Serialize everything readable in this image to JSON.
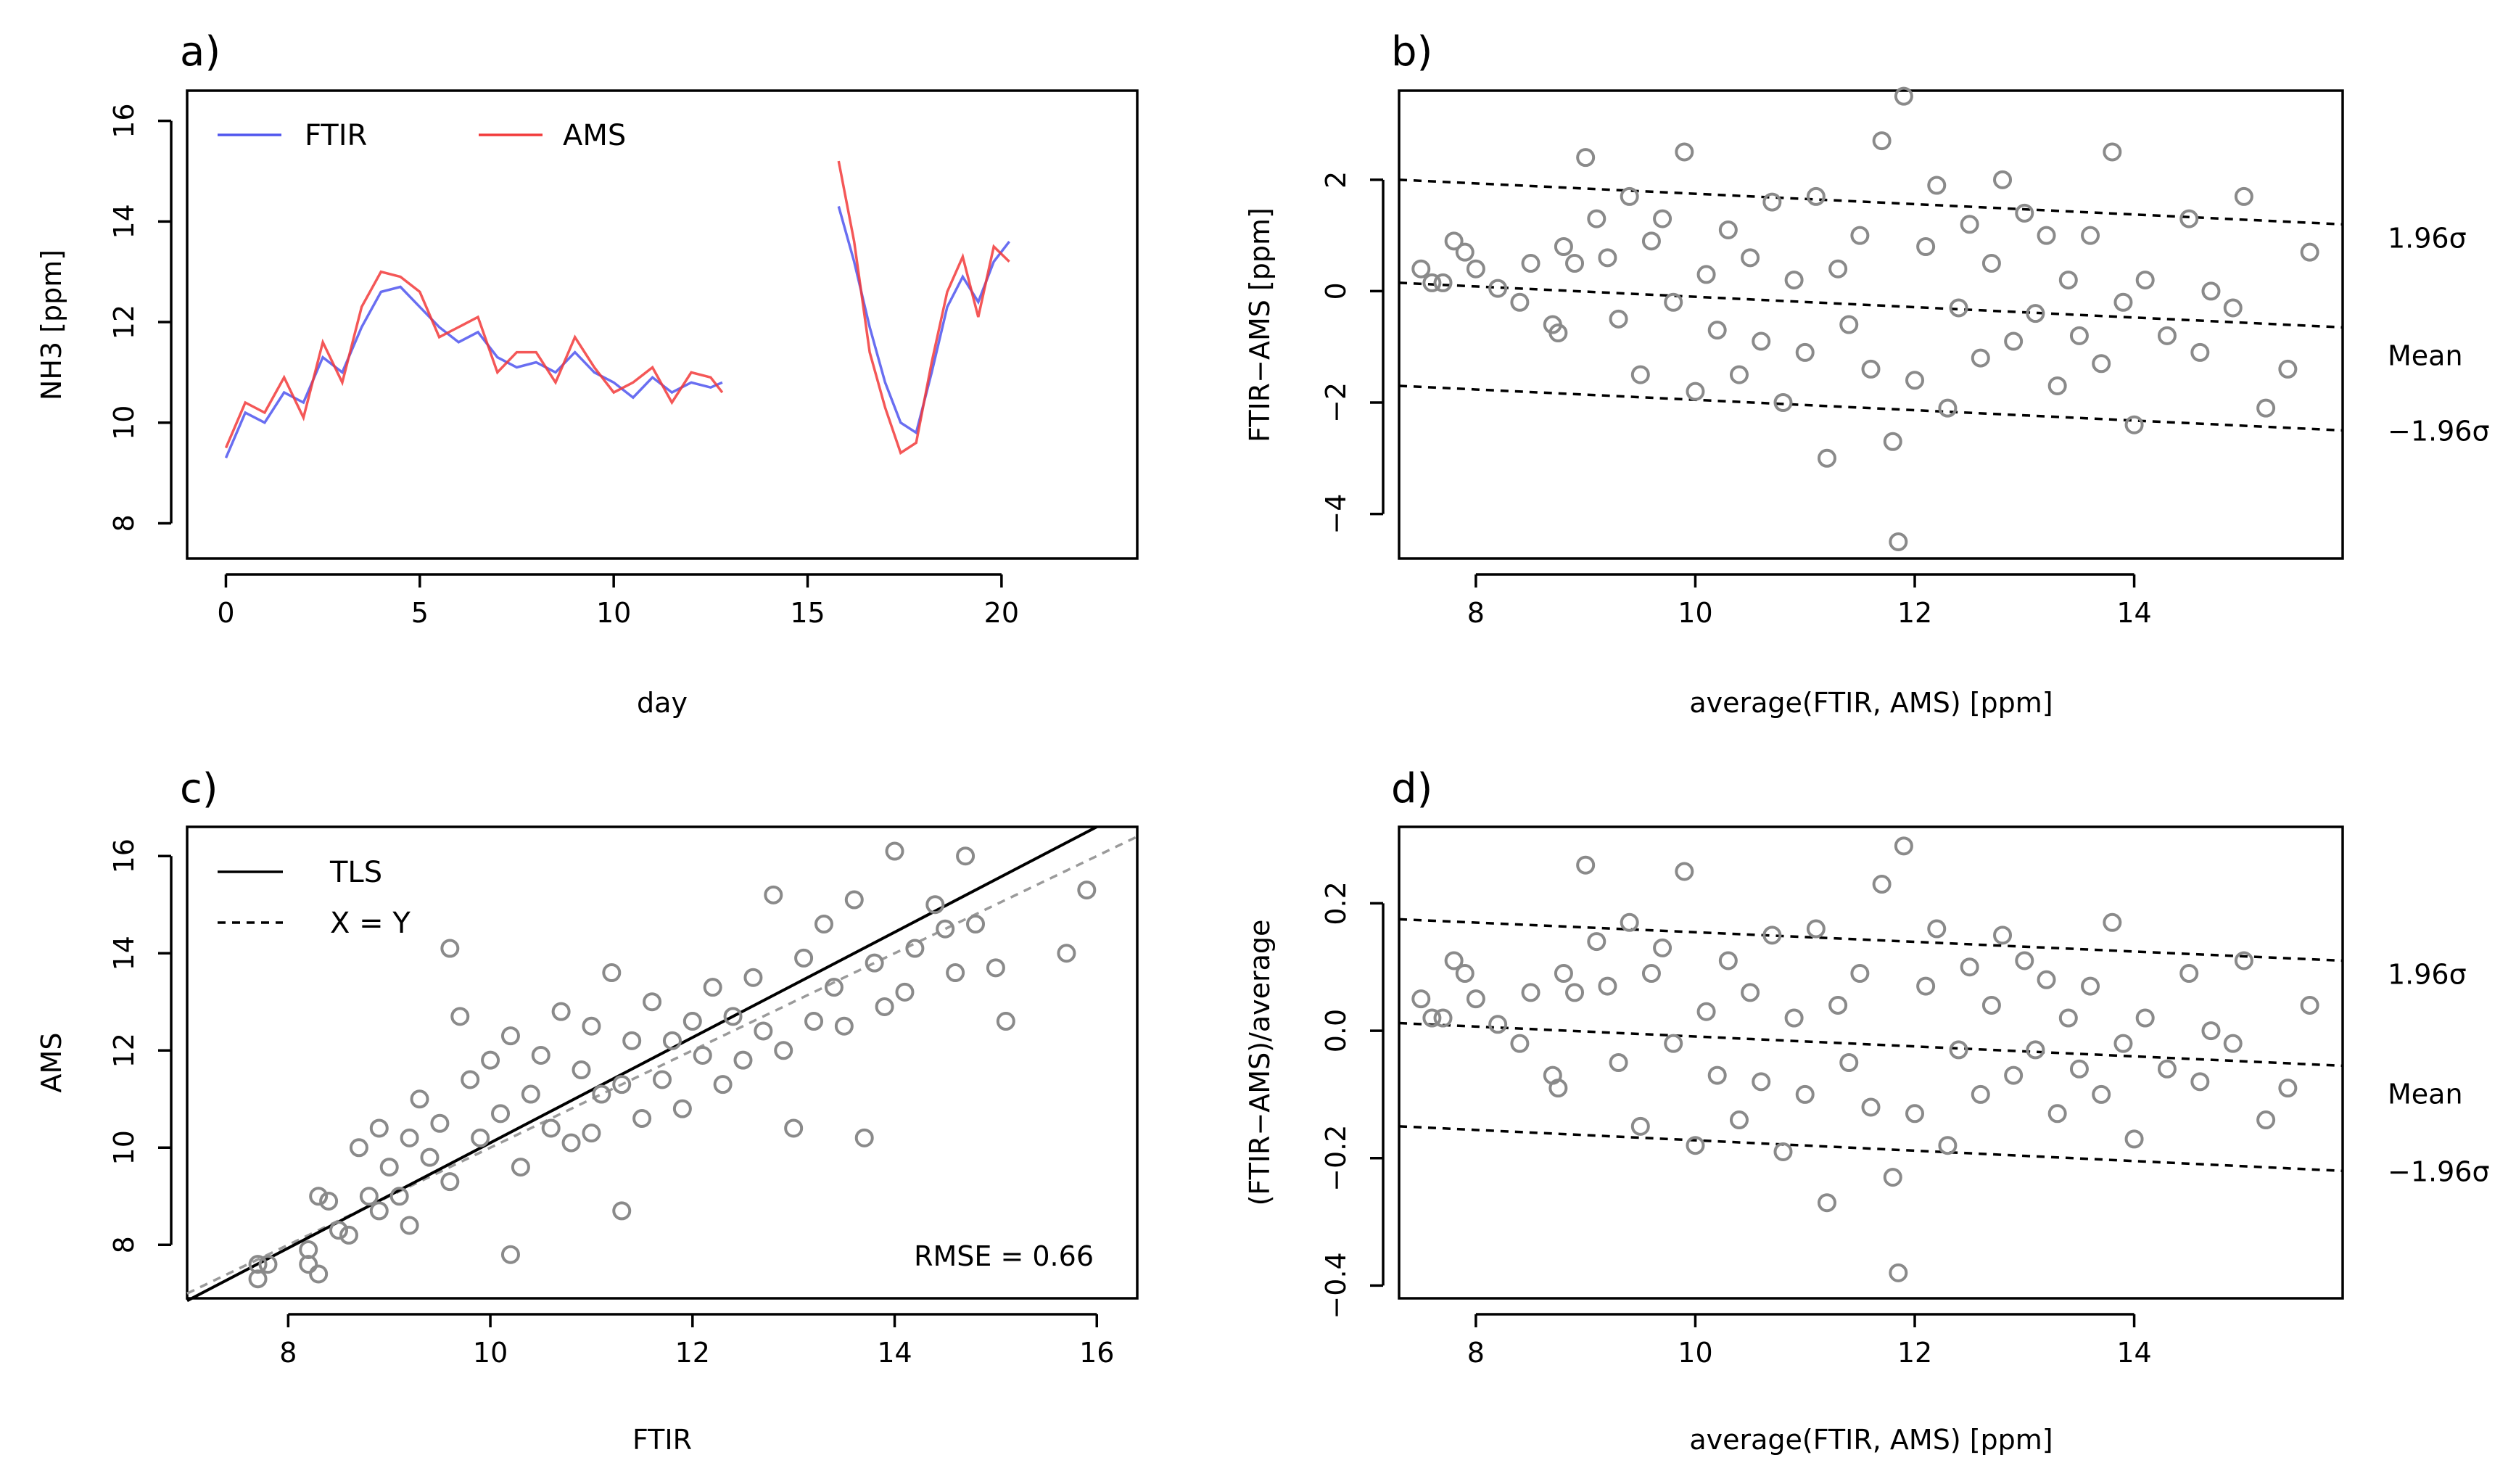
{
  "chart_data": [
    {
      "panel": "a)",
      "type": "line",
      "xlabel": "day",
      "ylabel": "NH3 [ppm]",
      "xlim": [
        -1,
        23.5
      ],
      "ylim": [
        7.3,
        16.6
      ],
      "xticks": [
        0,
        5,
        10,
        15,
        20
      ],
      "yticks": [
        8,
        10,
        12,
        14,
        16
      ],
      "legend": [
        "FTIR",
        "AMS"
      ],
      "colors": {
        "FTIR": "#4f55ee",
        "AMS": "#f23a3a"
      },
      "series": [
        {
          "name": "FTIR",
          "x": [
            0.0,
            0.5,
            1.0,
            1.5,
            2.0,
            2.5,
            3.0,
            3.5,
            4.0,
            4.5,
            5.0,
            5.5,
            6.0,
            6.5,
            7.0,
            7.5,
            8.0,
            8.5,
            9.0,
            9.5,
            10.0,
            10.5,
            11.0,
            11.5,
            12.0,
            12.5,
            12.8,
            15.8,
            16.2,
            16.6,
            17.0,
            17.4,
            17.8,
            18.2,
            18.6,
            19.0,
            19.4,
            19.8,
            20.2
          ],
          "y": [
            9.3,
            10.2,
            10.0,
            10.6,
            10.4,
            11.3,
            11.0,
            11.9,
            12.6,
            12.7,
            12.3,
            11.9,
            11.6,
            11.8,
            11.3,
            11.1,
            11.2,
            11.0,
            11.4,
            11.0,
            10.8,
            10.5,
            10.9,
            10.6,
            10.8,
            10.7,
            10.8,
            14.3,
            13.2,
            11.9,
            10.8,
            10.0,
            9.8,
            11.0,
            12.3,
            12.9,
            12.4,
            13.2,
            13.6
          ]
        },
        {
          "name": "AMS",
          "x": [
            0.0,
            0.5,
            1.0,
            1.5,
            2.0,
            2.5,
            3.0,
            3.5,
            4.0,
            4.5,
            5.0,
            5.5,
            6.0,
            6.5,
            7.0,
            7.5,
            8.0,
            8.5,
            9.0,
            9.5,
            10.0,
            10.5,
            11.0,
            11.5,
            12.0,
            12.5,
            12.8,
            15.8,
            16.2,
            16.6,
            17.0,
            17.4,
            17.8,
            18.2,
            18.6,
            19.0,
            19.4,
            19.8,
            20.2
          ],
          "y": [
            9.5,
            10.4,
            10.2,
            10.9,
            10.1,
            11.6,
            10.8,
            12.3,
            13.0,
            12.9,
            12.6,
            11.7,
            11.9,
            12.1,
            11.0,
            11.4,
            11.4,
            10.8,
            11.7,
            11.1,
            10.6,
            10.8,
            11.1,
            10.4,
            11.0,
            10.9,
            10.6,
            15.2,
            13.6,
            11.4,
            10.3,
            9.4,
            9.6,
            11.2,
            12.6,
            13.3,
            12.1,
            13.5,
            13.2
          ]
        }
      ]
    },
    {
      "panel": "b)",
      "type": "scatter",
      "xlabel": "average(FTIR, AMS) [ppm]",
      "ylabel": "FTIR−AMS [ppm]",
      "xlim": [
        7.3,
        15.9
      ],
      "ylim": [
        -4.8,
        3.6
      ],
      "xticks": [
        8,
        10,
        12,
        14
      ],
      "yticks": [
        -4,
        -2,
        0,
        2
      ],
      "lines": [
        {
          "label": "1.96σ",
          "y_at_xlim": [
            2.0,
            1.2
          ]
        },
        {
          "label": "Mean",
          "y_at_xlim": [
            0.15,
            -0.65
          ]
        },
        {
          "label": "−1.96σ",
          "y_at_xlim": [
            -1.7,
            -2.5
          ]
        }
      ],
      "points": [
        [
          7.5,
          0.4
        ],
        [
          7.6,
          0.15
        ],
        [
          7.7,
          0.15
        ],
        [
          7.8,
          0.9
        ],
        [
          7.9,
          0.7
        ],
        [
          8.0,
          0.4
        ],
        [
          8.2,
          0.05
        ],
        [
          8.4,
          -0.2
        ],
        [
          8.5,
          0.5
        ],
        [
          8.7,
          -0.6
        ],
        [
          8.75,
          -0.75
        ],
        [
          8.8,
          0.8
        ],
        [
          8.9,
          0.5
        ],
        [
          9.0,
          2.4
        ],
        [
          9.1,
          1.3
        ],
        [
          9.2,
          0.6
        ],
        [
          9.3,
          -0.5
        ],
        [
          9.4,
          1.7
        ],
        [
          9.5,
          -1.5
        ],
        [
          9.6,
          0.9
        ],
        [
          9.7,
          1.3
        ],
        [
          9.8,
          -0.2
        ],
        [
          9.9,
          2.5
        ],
        [
          10.0,
          -1.8
        ],
        [
          10.1,
          0.3
        ],
        [
          10.2,
          -0.7
        ],
        [
          10.3,
          1.1
        ],
        [
          10.4,
          -1.5
        ],
        [
          10.5,
          0.6
        ],
        [
          10.6,
          -0.9
        ],
        [
          10.7,
          1.6
        ],
        [
          10.8,
          -2.0
        ],
        [
          10.9,
          0.2
        ],
        [
          11.0,
          -1.1
        ],
        [
          11.1,
          1.7
        ],
        [
          11.2,
          -3.0
        ],
        [
          11.3,
          0.4
        ],
        [
          11.4,
          -0.6
        ],
        [
          11.5,
          1.0
        ],
        [
          11.6,
          -1.4
        ],
        [
          11.7,
          2.7
        ],
        [
          11.8,
          -2.7
        ],
        [
          11.85,
          -4.5
        ],
        [
          11.9,
          3.5
        ],
        [
          12.0,
          -1.6
        ],
        [
          12.1,
          0.8
        ],
        [
          12.2,
          1.9
        ],
        [
          12.3,
          -2.1
        ],
        [
          12.4,
          -0.3
        ],
        [
          12.5,
          1.2
        ],
        [
          12.6,
          -1.2
        ],
        [
          12.7,
          0.5
        ],
        [
          12.8,
          2.0
        ],
        [
          12.9,
          -0.9
        ],
        [
          13.0,
          1.4
        ],
        [
          13.1,
          -0.4
        ],
        [
          13.2,
          1.0
        ],
        [
          13.3,
          -1.7
        ],
        [
          13.4,
          0.2
        ],
        [
          13.5,
          -0.8
        ],
        [
          13.6,
          1.0
        ],
        [
          13.7,
          -1.3
        ],
        [
          13.8,
          2.5
        ],
        [
          13.9,
          -0.2
        ],
        [
          14.0,
          -2.4
        ],
        [
          14.1,
          0.2
        ],
        [
          14.3,
          -0.8
        ],
        [
          14.5,
          1.3
        ],
        [
          14.6,
          -1.1
        ],
        [
          14.7,
          0.0
        ],
        [
          14.9,
          -0.3
        ],
        [
          15.0,
          1.7
        ],
        [
          15.2,
          -2.1
        ],
        [
          15.4,
          -1.4
        ],
        [
          15.6,
          0.7
        ]
      ]
    },
    {
      "panel": "c)",
      "type": "scatter",
      "xlabel": "FTIR",
      "ylabel": "AMS",
      "xlim": [
        7.0,
        16.4
      ],
      "ylim": [
        6.9,
        16.6
      ],
      "xticks": [
        8,
        10,
        12,
        14,
        16
      ],
      "yticks": [
        8,
        10,
        12,
        14,
        16
      ],
      "legend": [
        "TLS",
        "X = Y"
      ],
      "annotation": "RMSE = 0.66",
      "tls_line": {
        "x": [
          7.0,
          16.0
        ],
        "y": [
          6.85,
          16.6
        ]
      },
      "xy_line": {
        "x": [
          7.0,
          16.4
        ],
        "y": [
          7.0,
          16.4
        ]
      },
      "points": [
        [
          7.7,
          7.6
        ],
        [
          7.7,
          7.3
        ],
        [
          7.8,
          7.6
        ],
        [
          8.2,
          7.6
        ],
        [
          8.2,
          7.9
        ],
        [
          8.3,
          7.4
        ],
        [
          8.3,
          9.0
        ],
        [
          8.4,
          8.9
        ],
        [
          8.5,
          8.3
        ],
        [
          8.6,
          8.2
        ],
        [
          8.7,
          10.0
        ],
        [
          8.8,
          9.0
        ],
        [
          8.9,
          10.4
        ],
        [
          8.9,
          8.7
        ],
        [
          9.0,
          9.6
        ],
        [
          9.1,
          9.0
        ],
        [
          9.2,
          10.2
        ],
        [
          9.2,
          8.4
        ],
        [
          9.3,
          11.0
        ],
        [
          9.4,
          9.8
        ],
        [
          9.5,
          10.5
        ],
        [
          9.6,
          14.1
        ],
        [
          9.6,
          9.3
        ],
        [
          9.7,
          12.7
        ],
        [
          9.8,
          11.4
        ],
        [
          9.9,
          10.2
        ],
        [
          10.0,
          11.8
        ],
        [
          10.1,
          10.7
        ],
        [
          10.2,
          7.8
        ],
        [
          10.2,
          12.3
        ],
        [
          10.3,
          9.6
        ],
        [
          10.4,
          11.1
        ],
        [
          10.5,
          11.9
        ],
        [
          10.6,
          10.4
        ],
        [
          10.7,
          12.8
        ],
        [
          10.8,
          10.1
        ],
        [
          10.9,
          11.6
        ],
        [
          11.0,
          12.5
        ],
        [
          11.0,
          10.3
        ],
        [
          11.1,
          11.1
        ],
        [
          11.2,
          13.6
        ],
        [
          11.3,
          11.3
        ],
        [
          11.3,
          8.7
        ],
        [
          11.4,
          12.2
        ],
        [
          11.5,
          10.6
        ],
        [
          11.6,
          13.0
        ],
        [
          11.7,
          11.4
        ],
        [
          11.8,
          12.2
        ],
        [
          11.9,
          10.8
        ],
        [
          12.0,
          12.6
        ],
        [
          12.1,
          11.9
        ],
        [
          12.2,
          13.3
        ],
        [
          12.3,
          11.3
        ],
        [
          12.4,
          12.7
        ],
        [
          12.5,
          11.8
        ],
        [
          12.6,
          13.5
        ],
        [
          12.7,
          12.4
        ],
        [
          12.8,
          15.2
        ],
        [
          12.9,
          12.0
        ],
        [
          13.0,
          10.4
        ],
        [
          13.1,
          13.9
        ],
        [
          13.2,
          12.6
        ],
        [
          13.3,
          14.6
        ],
        [
          13.4,
          13.3
        ],
        [
          13.5,
          12.5
        ],
        [
          13.6,
          15.1
        ],
        [
          13.7,
          10.2
        ],
        [
          13.8,
          13.8
        ],
        [
          13.9,
          12.9
        ],
        [
          14.0,
          16.1
        ],
        [
          14.1,
          13.2
        ],
        [
          14.2,
          14.1
        ],
        [
          14.4,
          15.0
        ],
        [
          14.5,
          14.5
        ],
        [
          14.6,
          13.6
        ],
        [
          14.7,
          16.0
        ],
        [
          14.8,
          14.6
        ],
        [
          15.0,
          13.7
        ],
        [
          15.1,
          12.6
        ],
        [
          15.7,
          14.0
        ],
        [
          15.9,
          15.3
        ]
      ]
    },
    {
      "panel": "d)",
      "type": "scatter",
      "xlabel": "average(FTIR, AMS) [ppm]",
      "ylabel": "(FTIR−AMS)/average",
      "xlim": [
        7.3,
        15.9
      ],
      "ylim": [
        -0.42,
        0.32
      ],
      "xticks": [
        8,
        10,
        12,
        14
      ],
      "yticks": [
        -0.4,
        -0.2,
        0.0,
        0.2
      ],
      "lines": [
        {
          "label": "1.96σ",
          "y_at_xlim": [
            0.175,
            0.11
          ]
        },
        {
          "label": "Mean",
          "y_at_xlim": [
            0.012,
            -0.055
          ]
        },
        {
          "label": "−1.96σ",
          "y_at_xlim": [
            -0.15,
            -0.22
          ]
        }
      ],
      "points": [
        [
          7.5,
          0.05
        ],
        [
          7.6,
          0.02
        ],
        [
          7.7,
          0.02
        ],
        [
          7.8,
          0.11
        ],
        [
          7.9,
          0.09
        ],
        [
          8.0,
          0.05
        ],
        [
          8.2,
          0.01
        ],
        [
          8.4,
          -0.02
        ],
        [
          8.5,
          0.06
        ],
        [
          8.7,
          -0.07
        ],
        [
          8.75,
          -0.09
        ],
        [
          8.8,
          0.09
        ],
        [
          8.9,
          0.06
        ],
        [
          9.0,
          0.26
        ],
        [
          9.1,
          0.14
        ],
        [
          9.2,
          0.07
        ],
        [
          9.3,
          -0.05
        ],
        [
          9.4,
          0.17
        ],
        [
          9.5,
          -0.15
        ],
        [
          9.6,
          0.09
        ],
        [
          9.7,
          0.13
        ],
        [
          9.8,
          -0.02
        ],
        [
          9.9,
          0.25
        ],
        [
          10.0,
          -0.18
        ],
        [
          10.1,
          0.03
        ],
        [
          10.2,
          -0.07
        ],
        [
          10.3,
          0.11
        ],
        [
          10.4,
          -0.14
        ],
        [
          10.5,
          0.06
        ],
        [
          10.6,
          -0.08
        ],
        [
          10.7,
          0.15
        ],
        [
          10.8,
          -0.19
        ],
        [
          10.9,
          0.02
        ],
        [
          11.0,
          -0.1
        ],
        [
          11.1,
          0.16
        ],
        [
          11.2,
          -0.27
        ],
        [
          11.3,
          0.04
        ],
        [
          11.4,
          -0.05
        ],
        [
          11.5,
          0.09
        ],
        [
          11.6,
          -0.12
        ],
        [
          11.7,
          0.23
        ],
        [
          11.8,
          -0.23
        ],
        [
          11.85,
          -0.38
        ],
        [
          11.9,
          0.29
        ],
        [
          12.0,
          -0.13
        ],
        [
          12.1,
          0.07
        ],
        [
          12.2,
          0.16
        ],
        [
          12.3,
          -0.18
        ],
        [
          12.4,
          -0.03
        ],
        [
          12.5,
          0.1
        ],
        [
          12.6,
          -0.1
        ],
        [
          12.7,
          0.04
        ],
        [
          12.8,
          0.15
        ],
        [
          12.9,
          -0.07
        ],
        [
          13.0,
          0.11
        ],
        [
          13.1,
          -0.03
        ],
        [
          13.2,
          0.08
        ],
        [
          13.3,
          -0.13
        ],
        [
          13.4,
          0.02
        ],
        [
          13.5,
          -0.06
        ],
        [
          13.6,
          0.07
        ],
        [
          13.7,
          -0.1
        ],
        [
          13.8,
          0.17
        ],
        [
          13.9,
          -0.02
        ],
        [
          14.0,
          -0.17
        ],
        [
          14.1,
          0.02
        ],
        [
          14.3,
          -0.06
        ],
        [
          14.5,
          0.09
        ],
        [
          14.6,
          -0.08
        ],
        [
          14.7,
          0.0
        ],
        [
          14.9,
          -0.02
        ],
        [
          15.0,
          0.11
        ],
        [
          15.2,
          -0.14
        ],
        [
          15.4,
          -0.09
        ],
        [
          15.6,
          0.04
        ]
      ]
    }
  ]
}
